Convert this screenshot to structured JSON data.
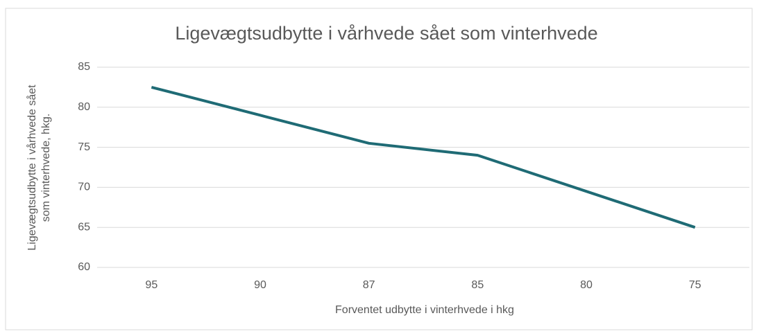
{
  "chart_data": {
    "type": "line",
    "title": "Ligevægtsudbytte i vårhvede sået som vinterhvede",
    "x_label": "Forventet udbytte i vinterhvede i hkg",
    "y_label": [
      "Ligevægtsudbytte i vårhvede sået",
      "som vinterhvede, hkg."
    ],
    "categories": [
      "95",
      "90",
      "87",
      "85",
      "80",
      "75"
    ],
    "series": [
      {
        "name": "Ligevægtsudbytte",
        "color": "#1f6b75",
        "values": [
          82.5,
          79,
          75.5,
          74,
          69.5,
          65
        ]
      }
    ],
    "ylim": [
      60,
      85
    ],
    "yticks": [
      60,
      65,
      70,
      75,
      80,
      85
    ],
    "grid": true
  }
}
